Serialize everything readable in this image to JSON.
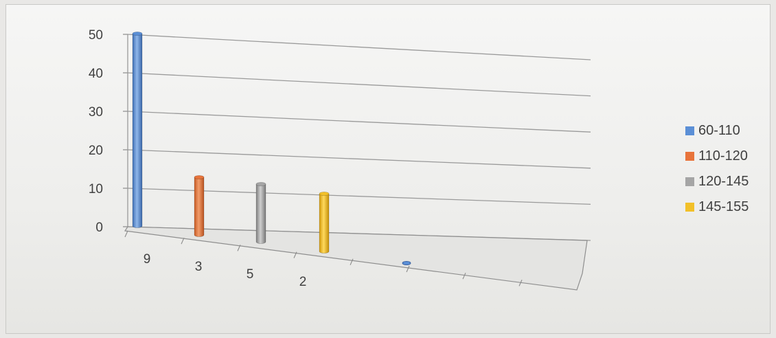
{
  "chart_data": {
    "type": "bar",
    "categories": [
      "9",
      "3",
      "5",
      "2",
      ""
    ],
    "series": [
      {
        "name": "60-110",
        "values": [
          50,
          null,
          null,
          null,
          0
        ],
        "color": "#5b8fd6"
      },
      {
        "name": "110-120",
        "values": [
          null,
          15,
          null,
          null,
          null
        ],
        "color": "#e8743b"
      },
      {
        "name": "120-145",
        "values": [
          null,
          null,
          15,
          null,
          null
        ],
        "color": "#a5a5a5"
      },
      {
        "name": "145-155",
        "values": [
          null,
          null,
          null,
          15,
          null
        ],
        "color": "#f2c029"
      }
    ],
    "y_ticks": [
      "0",
      "10",
      "20",
      "30",
      "40",
      "50"
    ],
    "ylim": [
      0,
      50
    ],
    "grid": true,
    "legend_position": "right",
    "style": "3d-cylinder"
  }
}
